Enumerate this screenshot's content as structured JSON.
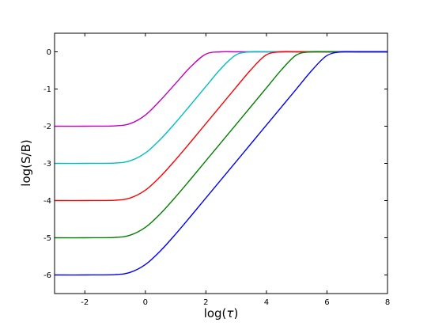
{
  "chart_data": {
    "type": "line",
    "title": "",
    "xlabel_prefix": "log(",
    "xlabel_symbol": "τ",
    "xlabel_suffix": ")",
    "ylabel": "log(S/B)",
    "xlim": [
      -3,
      8
    ],
    "ylim": [
      -6.5,
      0.5
    ],
    "xticks": [
      -2,
      0,
      2,
      4,
      6,
      8
    ],
    "xtick_labels": [
      "-2",
      "0",
      "2",
      "4",
      "6",
      "8"
    ],
    "yticks": [
      0,
      -1,
      -2,
      -3,
      -4,
      -5,
      -6
    ],
    "ytick_labels": [
      "0",
      "-1",
      "-2",
      "-3",
      "-4",
      "-5",
      "-6"
    ],
    "grid": false,
    "legend": "none",
    "series": [
      {
        "color": "#bf00bf",
        "x": [
          -3,
          -2,
          -1,
          -0.5,
          0,
          0.5,
          1,
          1.5,
          2,
          2.5,
          3,
          4,
          5,
          6,
          7,
          8
        ],
        "y": [
          -2,
          -2,
          -1.99,
          -1.93,
          -1.7,
          -1.3,
          -0.85,
          -0.4,
          -0.06,
          0,
          0,
          0,
          0,
          0,
          0,
          0
        ]
      },
      {
        "color": "#00bfbf",
        "x": [
          -3,
          -2,
          -1,
          -0.5,
          0,
          0.5,
          1,
          1.5,
          2,
          2.5,
          3,
          3.5,
          4,
          5,
          6,
          7,
          8
        ],
        "y": [
          -3,
          -3,
          -2.99,
          -2.93,
          -2.72,
          -2.35,
          -1.9,
          -1.42,
          -0.93,
          -0.45,
          -0.08,
          0,
          0,
          0,
          0,
          0,
          0
        ]
      },
      {
        "color": "#ff0000",
        "x": [
          -3,
          -2,
          -1,
          -0.5,
          0,
          0.5,
          1,
          1.5,
          2,
          2.5,
          3,
          3.5,
          4,
          4.5,
          5,
          6,
          7,
          8
        ],
        "y": [
          -4,
          -4,
          -3.99,
          -3.93,
          -3.72,
          -3.35,
          -2.9,
          -2.42,
          -1.93,
          -1.44,
          -0.95,
          -0.47,
          -0.08,
          0,
          0,
          0,
          0,
          0
        ]
      },
      {
        "color": "#008000",
        "x": [
          -3,
          -2,
          -1,
          -0.5,
          0,
          0.5,
          1,
          1.5,
          2,
          2.5,
          3,
          3.5,
          4,
          4.5,
          5,
          5.5,
          6,
          7,
          8
        ],
        "y": [
          -5,
          -5,
          -4.99,
          -4.93,
          -4.72,
          -4.35,
          -3.9,
          -3.42,
          -2.93,
          -2.44,
          -1.95,
          -1.46,
          -0.97,
          -0.48,
          -0.08,
          0,
          0,
          0,
          0
        ]
      },
      {
        "color": "#0000ff",
        "x": [
          -3,
          -2,
          -1,
          -0.5,
          0,
          0.5,
          1,
          1.5,
          2,
          2.5,
          3,
          3.5,
          4,
          4.5,
          5,
          5.5,
          6,
          6.5,
          7,
          8
        ],
        "y": [
          -6,
          -6,
          -5.99,
          -5.93,
          -5.72,
          -5.35,
          -4.9,
          -4.42,
          -3.93,
          -3.44,
          -2.95,
          -2.46,
          -1.97,
          -1.48,
          -0.99,
          -0.5,
          -0.1,
          0,
          0,
          0
        ]
      }
    ]
  }
}
